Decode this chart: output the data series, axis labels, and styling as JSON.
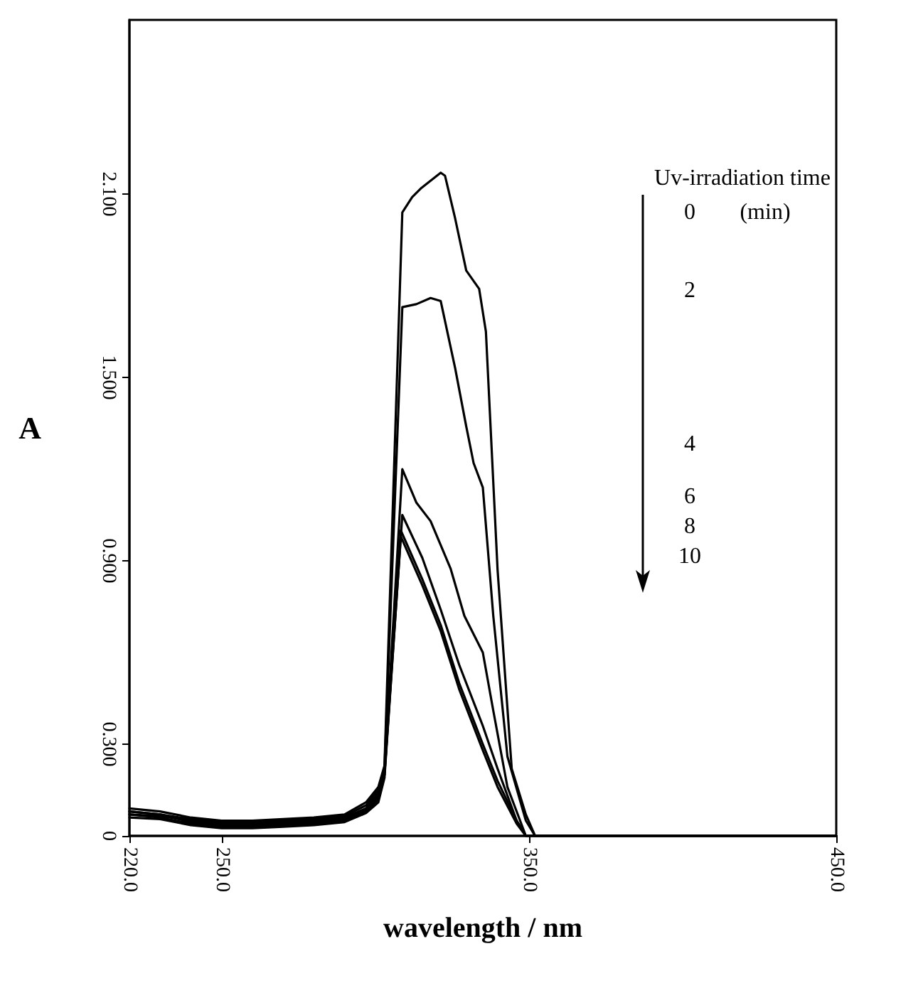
{
  "chart_data": {
    "type": "line",
    "xlabel": "wavelength / nm",
    "ylabel": "A",
    "annotations": [
      "Uv-irradiation time",
      "(min)",
      "0",
      "2",
      "4",
      "6",
      "8",
      "10"
    ],
    "xlim": [
      220,
      450
    ],
    "xticks": [
      {
        "value": 220,
        "label": "220.0"
      },
      {
        "value": 250,
        "label": "250.0"
      },
      {
        "value": 350,
        "label": "350.0"
      },
      {
        "value": 450,
        "label": "450.0"
      }
    ],
    "ylim": [
      0,
      2.67
    ],
    "yticks": [
      0,
      {
        "value": 0.3,
        "label": "0.300"
      },
      {
        "value": 0.9,
        "label": "0.900"
      },
      {
        "value": 1.5,
        "label": "1.500"
      },
      {
        "value": 2.1,
        "label": "2.100"
      }
    ],
    "grid": false,
    "marker": "none",
    "line_style": "solid",
    "series": [
      {
        "color": "#000000",
        "x": [
          220,
          230,
          240,
          250,
          260,
          270,
          280,
          290,
          297,
          301,
          303,
          308.8,
          312,
          315,
          321.3,
          322.7,
          326,
          329.6,
          333.8,
          336,
          339.8,
          344.4,
          349,
          352,
          450
        ],
        "values": [
          0.09,
          0.08,
          0.06,
          0.05,
          0.05,
          0.055,
          0.06,
          0.07,
          0.11,
          0.16,
          0.23,
          2.04,
          2.09,
          2.12,
          2.17,
          2.16,
          2.02,
          1.85,
          1.79,
          1.65,
          0.87,
          0.22,
          0.07,
          0,
          0
        ]
      },
      {
        "color": "#000000",
        "x": [
          220,
          230,
          240,
          250,
          260,
          270,
          280,
          290,
          297,
          301,
          303,
          308.8,
          313.4,
          318,
          321.3,
          326,
          329.6,
          332,
          335,
          338.4,
          343,
          349,
          352,
          450
        ],
        "values": [
          0.08,
          0.07,
          0.055,
          0.045,
          0.045,
          0.05,
          0.055,
          0.065,
          0.1,
          0.15,
          0.22,
          1.73,
          1.74,
          1.76,
          1.75,
          1.53,
          1.34,
          1.22,
          1.14,
          0.72,
          0.26,
          0.05,
          0,
          0
        ]
      },
      {
        "color": "#000000",
        "x": [
          220,
          230,
          240,
          250,
          260,
          270,
          280,
          290,
          297,
          301,
          303,
          308.8,
          313.4,
          318,
          324.5,
          329,
          335,
          338.4,
          343,
          349,
          450
        ],
        "values": [
          0.07,
          0.065,
          0.05,
          0.04,
          0.04,
          0.045,
          0.05,
          0.06,
          0.09,
          0.14,
          0.21,
          1.2,
          1.09,
          1.03,
          0.875,
          0.72,
          0.6,
          0.41,
          0.16,
          0,
          0
        ]
      },
      {
        "color": "#000000",
        "x": [
          220,
          230,
          240,
          250,
          260,
          270,
          280,
          290,
          297,
          301,
          303,
          308.8,
          315.3,
          321.3,
          327.3,
          335,
          339.8,
          346,
          349,
          450
        ],
        "values": [
          0.08,
          0.07,
          0.045,
          0.035,
          0.035,
          0.04,
          0.045,
          0.055,
          0.085,
          0.13,
          0.2,
          1.05,
          0.91,
          0.74,
          0.56,
          0.36,
          0.22,
          0.05,
          0,
          0
        ]
      },
      {
        "color": "#000000",
        "x": [
          220,
          230,
          240,
          250,
          260,
          270,
          280,
          290,
          297,
          301,
          303,
          308.3,
          315.3,
          321.3,
          327.3,
          335,
          339.8,
          346,
          349,
          450
        ],
        "values": [
          0.07,
          0.06,
          0.04,
          0.03,
          0.03,
          0.035,
          0.04,
          0.05,
          0.08,
          0.12,
          0.2,
          1,
          0.84,
          0.69,
          0.5,
          0.3,
          0.18,
          0.05,
          0,
          0
        ]
      },
      {
        "color": "#000000",
        "x": [
          220,
          230,
          240,
          250,
          260,
          270,
          280,
          290,
          297,
          301,
          303,
          308.3,
          315.3,
          321.3,
          327.3,
          335,
          339.8,
          346,
          349,
          450
        ],
        "values": [
          0.06,
          0.055,
          0.035,
          0.025,
          0.025,
          0.03,
          0.035,
          0.045,
          0.075,
          0.11,
          0.19,
          0.98,
          0.82,
          0.67,
          0.48,
          0.28,
          0.16,
          0.04,
          0,
          0
        ]
      }
    ]
  }
}
